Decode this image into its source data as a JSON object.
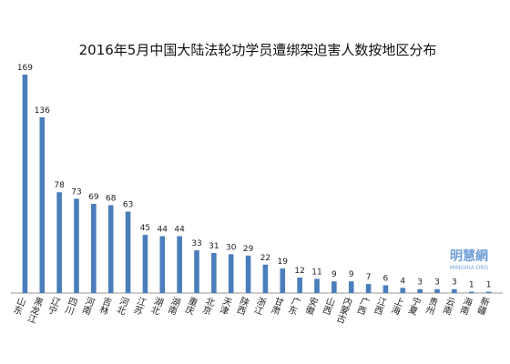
{
  "chart_data": {
    "type": "bar",
    "title": "2016年5月中国大陆法轮功学员遭绑架迫害人数按地区分布",
    "categories": [
      "山东",
      "黑龙江",
      "辽宁",
      "四川",
      "河南",
      "吉林",
      "河北",
      "江苏",
      "湖北",
      "湖南",
      "重庆",
      "北京",
      "天津",
      "陕西",
      "浙江",
      "甘肃",
      "广东",
      "安徽",
      "山西",
      "内蒙古",
      "广西",
      "江西",
      "上海",
      "宁夏",
      "贵州",
      "云南",
      "海南",
      "新疆"
    ],
    "values": [
      169,
      136,
      78,
      73,
      69,
      68,
      63,
      45,
      44,
      44,
      33,
      31,
      30,
      29,
      22,
      19,
      12,
      11,
      9,
      9,
      7,
      6,
      4,
      3,
      3,
      3,
      1,
      1
    ],
    "color": "#4a7ebb",
    "watermark": "明慧網",
    "watermark_sub": "MINGHUI.ORG"
  }
}
